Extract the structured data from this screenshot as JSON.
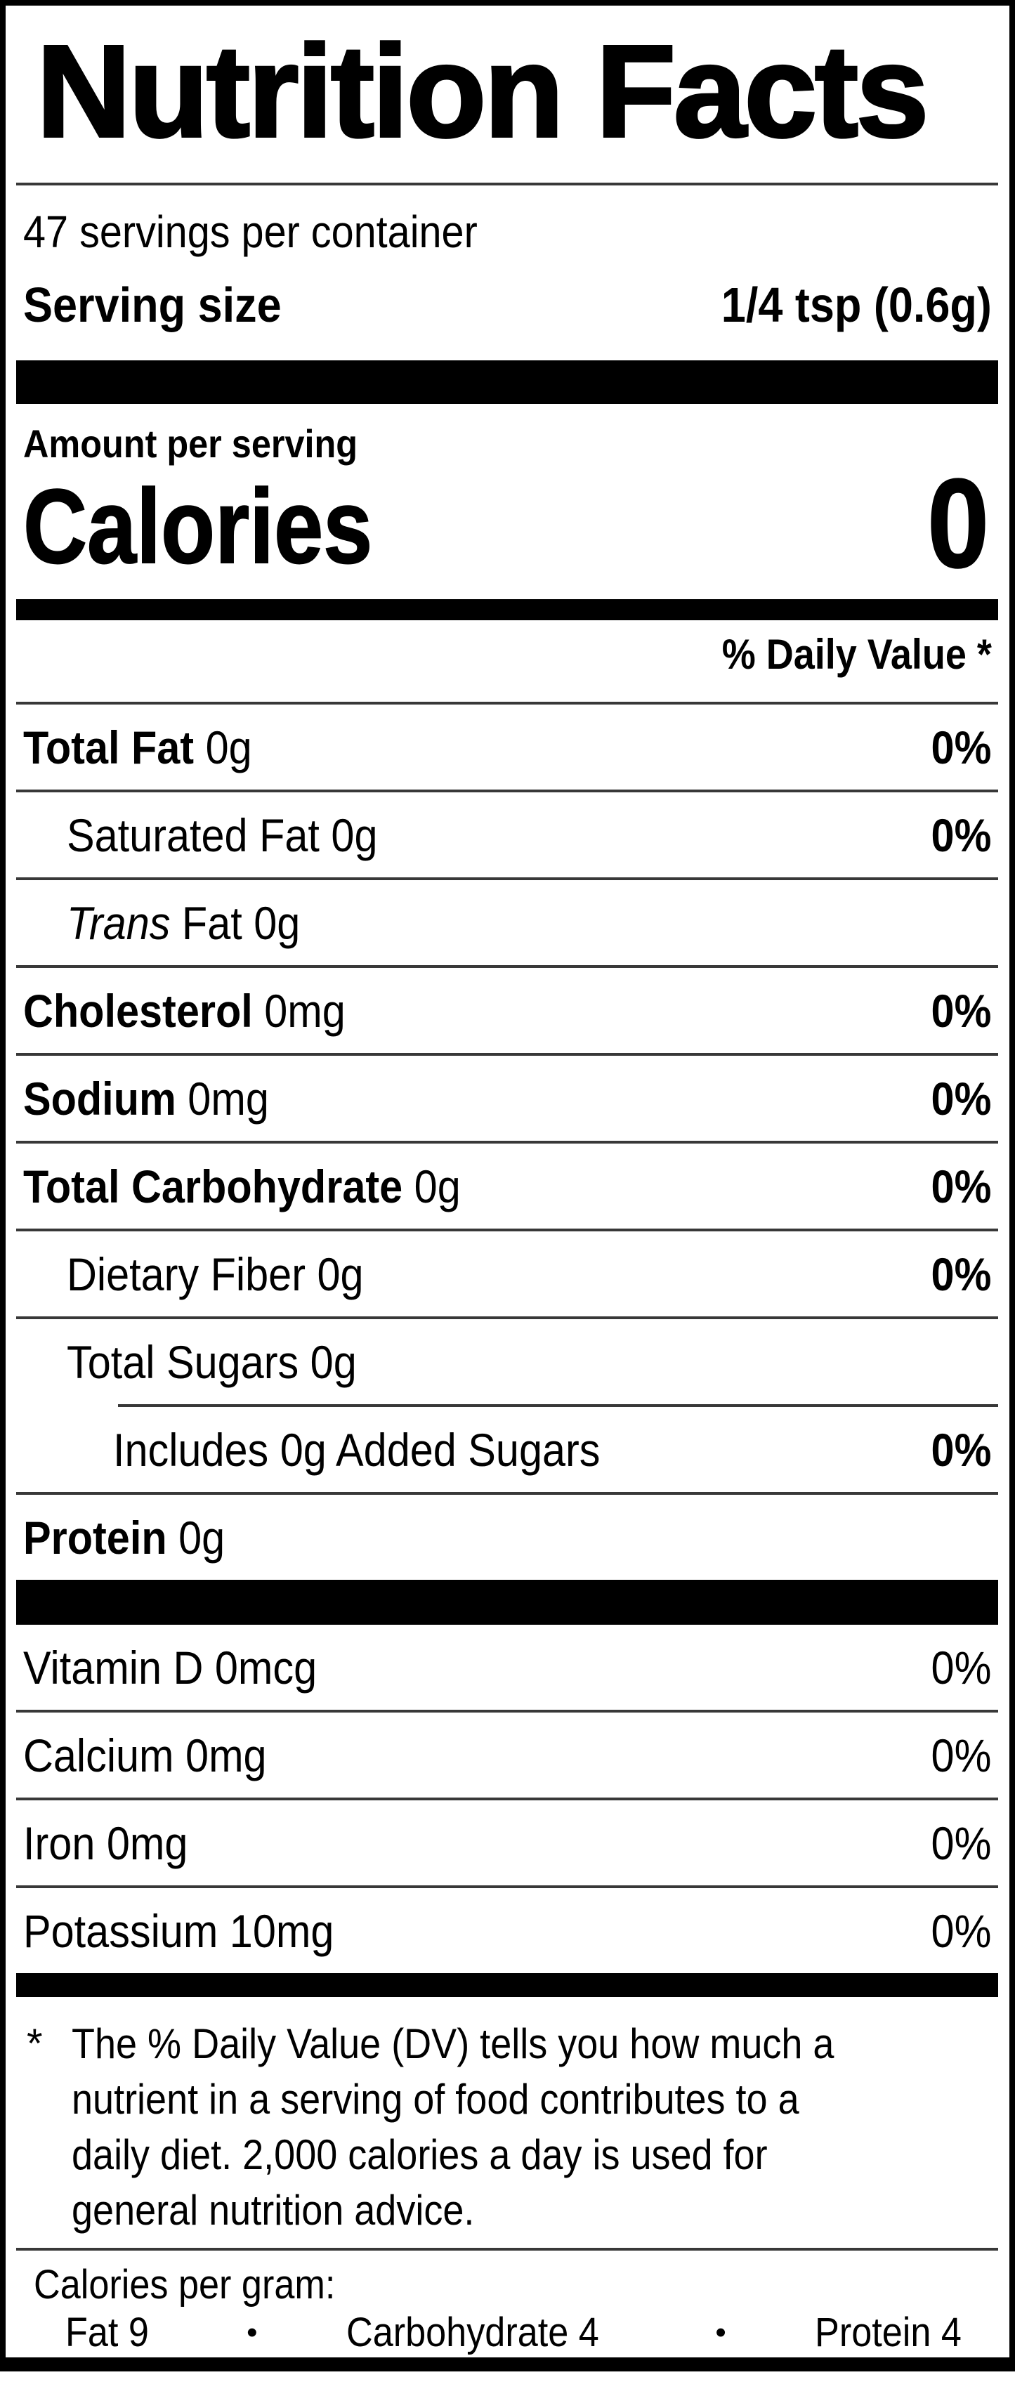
{
  "colors": {
    "text": "#000000",
    "background": "#ffffff",
    "divider": "#383838",
    "bar": "#000000"
  },
  "header": {
    "title": "Nutrition Facts",
    "servings_per_container": "47 servings per container",
    "serving_size_label": "Serving size",
    "serving_size_value": "1/4 tsp (0.6g)"
  },
  "calories": {
    "amount_per_serving_label": "Amount per serving",
    "label": "Calories",
    "value": "0"
  },
  "daily_value_header": "% Daily Value *",
  "nutrient_rows": [
    {
      "parts": [
        {
          "text": "Total Fat",
          "bold": true
        },
        {
          "text": " 0g"
        }
      ],
      "dv": "0%",
      "dv_bold": true,
      "indent": 0,
      "divider": "full"
    },
    {
      "parts": [
        {
          "text": "Saturated Fat 0g"
        }
      ],
      "dv": "0%",
      "dv_bold": true,
      "indent": 1,
      "divider": "full"
    },
    {
      "parts": [
        {
          "text": "Trans",
          "italic": true
        },
        {
          "text": " Fat 0g"
        }
      ],
      "dv": null,
      "dv_bold": false,
      "indent": 1,
      "divider": "full"
    },
    {
      "parts": [
        {
          "text": "Cholesterol",
          "bold": true
        },
        {
          "text": " 0mg"
        }
      ],
      "dv": "0%",
      "dv_bold": true,
      "indent": 0,
      "divider": "full"
    },
    {
      "parts": [
        {
          "text": "Sodium",
          "bold": true
        },
        {
          "text": " 0mg"
        }
      ],
      "dv": "0%",
      "dv_bold": true,
      "indent": 0,
      "divider": "full"
    },
    {
      "parts": [
        {
          "text": "Total Carbohydrate",
          "bold": true
        },
        {
          "text": " 0g"
        }
      ],
      "dv": "0%",
      "dv_bold": true,
      "indent": 0,
      "divider": "full"
    },
    {
      "parts": [
        {
          "text": "Dietary Fiber 0g"
        }
      ],
      "dv": "0%",
      "dv_bold": true,
      "indent": 1,
      "divider": "full"
    },
    {
      "parts": [
        {
          "text": "Total Sugars 0g"
        }
      ],
      "dv": null,
      "dv_bold": false,
      "indent": 1,
      "divider": "full"
    },
    {
      "parts": [
        {
          "text": "Includes 0g Added Sugars"
        }
      ],
      "dv": "0%",
      "dv_bold": true,
      "indent": 2,
      "divider": "indent"
    },
    {
      "parts": [
        {
          "text": "Protein",
          "bold": true
        },
        {
          "text": " 0g"
        }
      ],
      "dv": null,
      "dv_bold": false,
      "indent": 0,
      "divider": "full"
    }
  ],
  "micronutrient_rows": [
    {
      "parts": [
        {
          "text": "Vitamin D 0mcg"
        }
      ],
      "dv": "0%",
      "dv_bold": false,
      "indent": 0,
      "divider": "none"
    },
    {
      "parts": [
        {
          "text": "Calcium 0mg"
        }
      ],
      "dv": "0%",
      "dv_bold": false,
      "indent": 0,
      "divider": "full"
    },
    {
      "parts": [
        {
          "text": "Iron 0mg"
        }
      ],
      "dv": "0%",
      "dv_bold": false,
      "indent": 0,
      "divider": "full"
    },
    {
      "parts": [
        {
          "text": "Potassium 10mg"
        }
      ],
      "dv": "0%",
      "dv_bold": false,
      "indent": 0,
      "divider": "full"
    }
  ],
  "footnote": {
    "marker": "*",
    "lines": [
      "The % Daily Value (DV) tells you how much a",
      "nutrient in a serving of food contributes to a",
      "daily diet. 2,000 calories a day is used for",
      "general nutrition advice."
    ]
  },
  "calories_per_gram": {
    "label": "Calories per gram:",
    "items": [
      "Fat 9",
      "Carbohydrate 4",
      "Protein 4"
    ],
    "separator": "•"
  }
}
